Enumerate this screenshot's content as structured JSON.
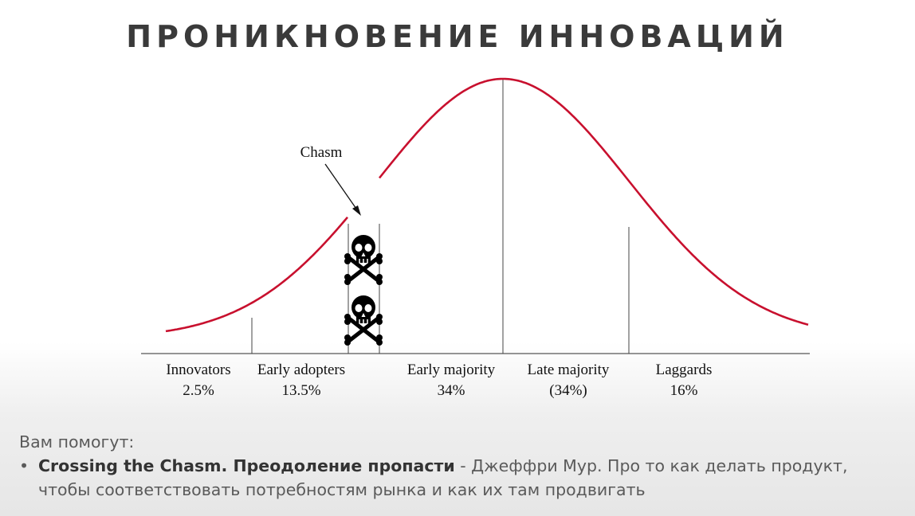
{
  "title": "ПРОНИКНОВЕНИЕ ИННОВАЦИЙ",
  "diagram": {
    "chasm_label": "Chasm",
    "curve_color": "#c8102e",
    "segments": [
      {
        "name": "Innovators",
        "value": "2.5%"
      },
      {
        "name": "Early adopters",
        "value": "13.5%"
      },
      {
        "name": "Early majority",
        "value": "34%"
      },
      {
        "name": "Late majority",
        "value": "(34%)"
      },
      {
        "name": "Laggards",
        "value": "16%"
      }
    ],
    "icons": [
      "skull-crossbones-icon",
      "skull-crossbones-icon"
    ]
  },
  "help": {
    "heading": "Вам помогут:",
    "bullet": "•",
    "book_title": "Crossing the Chasm. Преодоление пропасти",
    "book_desc": " - Джеффри Мур. Про то как делать продукт, чтобы соответствовать потребностям рынка и как их там продвигать"
  }
}
